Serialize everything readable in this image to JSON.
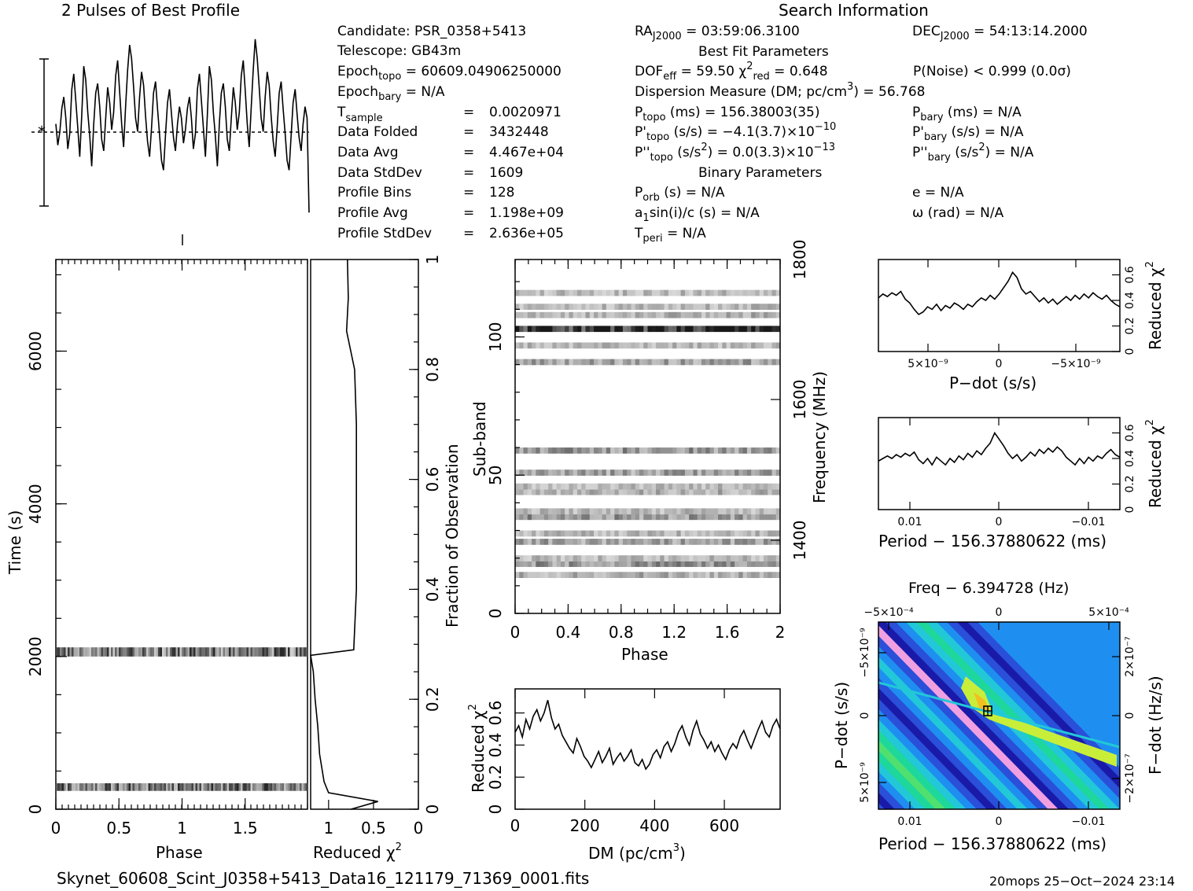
{
  "header": {
    "profile_title": "2 Pulses of Best Profile",
    "search_title": "Search Information",
    "best_fit_title": "Best Fit Parameters",
    "binary_title": "Binary Parameters"
  },
  "info_left": {
    "candidate": "Candidate:  PSR_0358+5413",
    "telescope": "Telescope:  GB43m",
    "epoch_topo": "60609.04906250000",
    "epoch_bary": "N/A",
    "t_sample": "0.0020971",
    "data_folded": "3432448",
    "data_avg": "4.467e+04",
    "data_stddev": "1609",
    "profile_bins": "128",
    "profile_avg": "1.198e+09",
    "profile_stddev": "2.636e+05"
  },
  "info_right": {
    "ra": "03:59:06.3100",
    "dec": "54:13:14.2000",
    "dof_eff": "59.50",
    "chi2_red": "0.648",
    "p_noise": "P(Noise) < 0.999  (0.0σ)",
    "dm": "56.768",
    "p_topo": "156.38003(35)",
    "p_bary": "N/A",
    "pd_topo": "−4.1(3.7)×10",
    "pd_topo_exp": "−10",
    "pd_bary": "N/A",
    "pdd_topo": "0.0(3.3)×10",
    "pdd_topo_exp": "−13",
    "pdd_bary": "N/A",
    "p_orb": "N/A",
    "a1sini": "N/A",
    "t_peri": "N/A",
    "e": "N/A",
    "omega": "N/A"
  },
  "footer": {
    "filename": "Skynet_60608_Scint_J0358+5413_Data16_121179_71369_0001.fits",
    "stamp": "20mops 25−Oct−2024 23:14"
  },
  "chart_data": [
    {
      "id": "profile",
      "type": "line",
      "title": "2 Pulses of Best Profile",
      "xlabel": "",
      "ylabel": "",
      "x_range": [
        0,
        2
      ],
      "y": [
        0.52,
        0.41,
        0.48,
        0.6,
        0.66,
        0.55,
        0.39,
        0.47,
        0.7,
        0.78,
        0.64,
        0.5,
        0.35,
        0.57,
        0.82,
        0.75,
        0.58,
        0.46,
        0.3,
        0.52,
        0.68,
        0.73,
        0.61,
        0.44,
        0.38,
        0.55,
        0.71,
        0.63,
        0.49,
        0.58,
        0.77,
        0.85,
        0.69,
        0.52,
        0.4,
        0.61,
        0.8,
        0.93,
        0.86,
        0.71,
        0.55,
        0.48,
        0.66,
        0.79,
        0.72,
        0.56,
        0.43,
        0.35,
        0.5,
        0.68,
        0.74,
        0.6,
        0.47,
        0.33,
        0.28,
        0.46,
        0.63,
        0.7,
        0.57,
        0.45,
        0.38,
        0.52,
        0.61,
        0.55,
        0.42,
        0.49,
        0.6,
        0.66,
        0.55,
        0.39,
        0.47,
        0.7,
        0.78,
        0.64,
        0.5,
        0.35,
        0.57,
        0.82,
        0.75,
        0.58,
        0.46,
        0.3,
        0.52,
        0.68,
        0.73,
        0.61,
        0.44,
        0.38,
        0.55,
        0.71,
        0.63,
        0.49,
        0.58,
        0.77,
        0.85,
        0.69,
        0.52,
        0.4,
        0.61,
        0.8,
        0.96,
        0.86,
        0.71,
        0.55,
        0.48,
        0.66,
        0.79,
        0.72,
        0.56,
        0.43,
        0.35,
        0.5,
        0.68,
        0.74,
        0.6,
        0.47,
        0.33,
        0.28,
        0.46,
        0.63,
        0.7,
        0.57,
        0.45,
        0.38,
        0.52,
        0.61,
        0.55,
        0.06
      ]
    },
    {
      "id": "time-phase",
      "type": "heatmap",
      "xlabel": "Phase",
      "ylabel": "Time (s)",
      "xlim": [
        0,
        2
      ],
      "ylim": [
        0,
        7200
      ],
      "x_ticks": [
        "0",
        "0.5",
        "1",
        "1.5"
      ],
      "y_ticks": [
        "0",
        "2000",
        "4000",
        "6000"
      ],
      "bands": [
        {
          "time_from": 2000,
          "time_to": 2120
        },
        {
          "time_from": 240,
          "time_to": 340
        }
      ]
    },
    {
      "id": "redchi-time",
      "type": "line",
      "xlabel": "Reduced χ²",
      "ylabel": "Fraction of Observation",
      "x_ticks": [
        "1",
        "0.5",
        "0"
      ],
      "y_ticks": [
        "0",
        "0.2",
        "0.4",
        "0.6",
        "0.8",
        "1"
      ],
      "xlim": [
        1.2,
        0
      ],
      "ylim": [
        0,
        1
      ],
      "points": [
        [
          0.75,
          0
        ],
        [
          0.45,
          0.014
        ],
        [
          1.0,
          0.03
        ],
        [
          1.05,
          0.05
        ],
        [
          1.1,
          0.1
        ],
        [
          1.12,
          0.15
        ],
        [
          1.15,
          0.2
        ],
        [
          1.17,
          0.25
        ],
        [
          1.2,
          0.28
        ],
        [
          0.72,
          0.29
        ],
        [
          0.69,
          0.4
        ],
        [
          0.69,
          0.5
        ],
        [
          0.69,
          0.6
        ],
        [
          0.69,
          0.7
        ],
        [
          0.71,
          0.8
        ],
        [
          0.8,
          0.87
        ],
        [
          0.78,
          0.93
        ],
        [
          0.79,
          1.0
        ]
      ]
    },
    {
      "id": "subband-phase",
      "type": "heatmap",
      "xlabel": "Phase",
      "ylabel": "Sub-band",
      "right_label": "Frequency (MHz)",
      "x_ticks": [
        "0",
        "0.4",
        "0.8",
        "1.2",
        "1.6",
        "2"
      ],
      "y_ticks": [
        "0",
        "50",
        "100"
      ],
      "freq_ticks": [
        "1400",
        "1600",
        "1800"
      ],
      "xlim": [
        0,
        2
      ],
      "ylim": [
        0,
        128
      ],
      "bands": [
        {
          "center": 14,
          "darkness": 0.35
        },
        {
          "center": 18,
          "darkness": 0.45
        },
        {
          "center": 20,
          "darkness": 0.3
        },
        {
          "center": 26,
          "darkness": 0.4
        },
        {
          "center": 29,
          "darkness": 0.3
        },
        {
          "center": 35,
          "darkness": 0.45
        },
        {
          "center": 37,
          "darkness": 0.3
        },
        {
          "center": 44,
          "darkness": 0.35
        },
        {
          "center": 46,
          "darkness": 0.3
        },
        {
          "center": 51,
          "darkness": 0.4
        },
        {
          "center": 59,
          "darkness": 0.45
        },
        {
          "center": 91,
          "darkness": 0.4
        },
        {
          "center": 97,
          "darkness": 0.3
        },
        {
          "center": 103,
          "darkness": 0.95
        },
        {
          "center": 108,
          "darkness": 0.35
        },
        {
          "center": 111,
          "darkness": 0.3
        },
        {
          "center": 116,
          "darkness": 0.3
        }
      ]
    },
    {
      "id": "redchi-dm",
      "type": "line",
      "xlabel": "DM (pc/cm³)",
      "ylabel": "Reduced χ²",
      "x_ticks": [
        "0",
        "200",
        "400",
        "600"
      ],
      "y_ticks": [
        "0",
        "0.2",
        "0.4",
        "0.6"
      ],
      "xlim": [
        0,
        760
      ],
      "ylim": [
        0,
        0.75
      ],
      "y": [
        0.48,
        0.52,
        0.45,
        0.56,
        0.5,
        0.58,
        0.62,
        0.55,
        0.6,
        0.68,
        0.57,
        0.5,
        0.53,
        0.46,
        0.42,
        0.38,
        0.35,
        0.44,
        0.39,
        0.33,
        0.3,
        0.26,
        0.31,
        0.36,
        0.29,
        0.33,
        0.38,
        0.28,
        0.32,
        0.35,
        0.3,
        0.33,
        0.37,
        0.29,
        0.27,
        0.31,
        0.25,
        0.28,
        0.34,
        0.37,
        0.32,
        0.39,
        0.42,
        0.36,
        0.41,
        0.48,
        0.52,
        0.45,
        0.4,
        0.49,
        0.55,
        0.47,
        0.43,
        0.38,
        0.42,
        0.36,
        0.4,
        0.35,
        0.31,
        0.37,
        0.41,
        0.38,
        0.45,
        0.49,
        0.43,
        0.38,
        0.44,
        0.5,
        0.55,
        0.48,
        0.45,
        0.52,
        0.56,
        0.5
      ]
    },
    {
      "id": "redchi-pdot",
      "type": "line",
      "xlabel": "P−dot (s/s)",
      "ylabel": "Reduced χ²",
      "x_ticks": [
        "5×10⁻⁹",
        "0",
        "−5×10⁻⁹"
      ],
      "y_ticks": [
        "0",
        "0.2",
        "0.4",
        "0.6"
      ],
      "ylim": [
        0,
        0.72
      ],
      "y": [
        0.42,
        0.45,
        0.43,
        0.46,
        0.44,
        0.47,
        0.41,
        0.38,
        0.33,
        0.29,
        0.31,
        0.35,
        0.33,
        0.37,
        0.32,
        0.36,
        0.34,
        0.38,
        0.36,
        0.33,
        0.37,
        0.35,
        0.39,
        0.42,
        0.4,
        0.44,
        0.41,
        0.45,
        0.5,
        0.55,
        0.62,
        0.58,
        0.49,
        0.45,
        0.47,
        0.43,
        0.39,
        0.42,
        0.38,
        0.41,
        0.37,
        0.4,
        0.43,
        0.4,
        0.44,
        0.41,
        0.45,
        0.42,
        0.46,
        0.43,
        0.41,
        0.44,
        0.4,
        0.37,
        0.35
      ]
    },
    {
      "id": "redchi-period",
      "type": "line",
      "xlabel": "Period − 156.37880622 (ms)",
      "ylabel": "Reduced χ²",
      "x_ticks": [
        "0.01",
        "0",
        "−0.01"
      ],
      "y_ticks": [
        "0",
        "0.2",
        "0.4",
        "0.6"
      ],
      "ylim": [
        0,
        0.72
      ],
      "y": [
        0.38,
        0.4,
        0.42,
        0.4,
        0.43,
        0.41,
        0.44,
        0.42,
        0.45,
        0.39,
        0.36,
        0.4,
        0.35,
        0.41,
        0.38,
        0.35,
        0.4,
        0.37,
        0.42,
        0.39,
        0.44,
        0.41,
        0.46,
        0.43,
        0.48,
        0.52,
        0.6,
        0.55,
        0.5,
        0.44,
        0.4,
        0.43,
        0.38,
        0.41,
        0.45,
        0.42,
        0.47,
        0.44,
        0.48,
        0.45,
        0.49,
        0.46,
        0.41,
        0.38,
        0.35,
        0.4,
        0.36,
        0.41,
        0.38,
        0.42,
        0.4,
        0.44,
        0.47,
        0.43,
        0.41
      ]
    },
    {
      "id": "pdot-period-map",
      "type": "heatmap",
      "title": "Freq − 6.394728 (Hz)",
      "xlabel": "Period − 156.37880622 (ms)",
      "ylabel": "P−dot (s/s)",
      "right_label": "F−dot (Hz/s)",
      "x_ticks": [
        "0.01",
        "0",
        "−0.01"
      ],
      "top_ticks": [
        "−5×10⁻⁴",
        "0",
        "5×10⁻⁴"
      ],
      "y_ticks": [
        "−5×10⁻⁹",
        "0",
        "5×10⁻⁹"
      ],
      "right_ticks": [
        "2×10⁻⁷",
        "0",
        "−2×10⁻⁷"
      ],
      "palette": [
        "#1a1aa8",
        "#2a4fd8",
        "#1e8ff0",
        "#22c8d8",
        "#1ed79a",
        "#4fe070",
        "#c8ee3a",
        "#f0c020",
        "#f0a0e0"
      ]
    }
  ]
}
